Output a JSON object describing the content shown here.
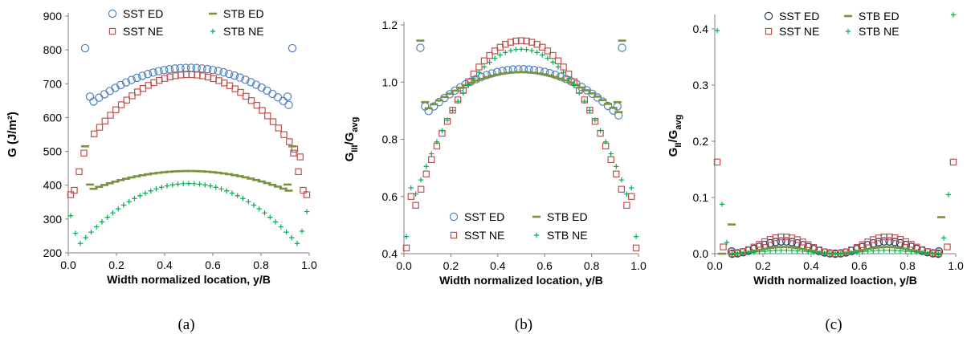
{
  "chart_data": [
    {
      "type": "scatter",
      "caption": "(a)",
      "xlabel": "Width normalized location, y/B",
      "ylabel": "G (J/m²)",
      "xlim": [
        0.0,
        1.0
      ],
      "ylim": [
        200,
        900
      ],
      "xticks": [
        "0.0",
        "0.2",
        "0.4",
        "0.6",
        "0.8",
        "1.0"
      ],
      "yticks": [
        "200",
        "300",
        "400",
        "500",
        "600",
        "700",
        "800",
        "900"
      ],
      "ytick_values": [
        200,
        300,
        400,
        500,
        600,
        700,
        800,
        900
      ],
      "legend_position": "top",
      "series": [
        {
          "name": "SST ED",
          "marker": "circle",
          "color": "#4f81bd",
          "model": "sst_ed",
          "params": {
            "edge": 805,
            "edge2": 662,
            "min": 645,
            "max": 747
          }
        },
        {
          "name": "SST NE",
          "marker": "square",
          "color": "#c0504d",
          "model": "sst_ne",
          "params": {
            "e0": 372,
            "e1": 385,
            "e2": 440,
            "e3": 495,
            "min": 545,
            "max": 727
          }
        },
        {
          "name": "STB ED",
          "marker": "dash",
          "color": "#77933c",
          "model": "stb_ed",
          "params": {
            "edge": 515,
            "edge2": 402,
            "min": 388,
            "max": 442
          }
        },
        {
          "name": "STB NE",
          "marker": "plus",
          "color": "#00b050",
          "model": "stb_ne",
          "params": {
            "e0": 310,
            "e1": 258,
            "min": 265,
            "max": 405
          }
        }
      ]
    },
    {
      "type": "scatter",
      "caption": "(b)",
      "xlabel": "Width normalized location, y/B",
      "ylabel": "GIII/Gavg",
      "ylabel_main": "G",
      "ylabel_sub": "III",
      "ylabel_sub2": "avg",
      "xlim": [
        0.0,
        1.0
      ],
      "ylim": [
        0.4,
        1.2
      ],
      "xticks": [
        "0.0",
        "0.2",
        "0.4",
        "0.6",
        "0.8",
        "1.0"
      ],
      "yticks": [
        "0.4",
        "0.6",
        "0.8",
        "1.0",
        "1.2"
      ],
      "ytick_values": [
        0.4,
        0.6,
        0.8,
        1.0,
        1.2
      ],
      "legend_position": "bottom",
      "series": [
        {
          "name": "SST ED",
          "marker": "circle",
          "color": "#4f81bd",
          "model": "b_ed",
          "params": {
            "edge": 1.12,
            "edge2": 0.915,
            "min": 0.895,
            "max": 1.045
          }
        },
        {
          "name": "SST NE",
          "marker": "square",
          "color": "#c0504d",
          "model": "b_ne",
          "params": {
            "e0": 0.42,
            "e1": 0.6,
            "min": 0.69,
            "max": 1.145
          }
        },
        {
          "name": "STB ED",
          "marker": "dash",
          "color": "#77933c",
          "model": "b_ed",
          "params": {
            "edge": 1.145,
            "edge2": 0.93,
            "min": 0.905,
            "max": 1.035
          }
        },
        {
          "name": "STB NE",
          "marker": "plus",
          "color": "#00b050",
          "model": "b_ne",
          "params": {
            "e0": 0.46,
            "e1": 0.63,
            "min": 0.715,
            "max": 1.115
          }
        }
      ]
    },
    {
      "type": "scatter",
      "caption": "(c)",
      "xlabel": "Width normalized loaction, y/B",
      "ylabel": "GII/Gavg",
      "ylabel_main": "G",
      "ylabel_sub": "II",
      "ylabel_sub2": "avg",
      "xlim": [
        0.0,
        1.0
      ],
      "ylim": [
        0.0,
        0.42
      ],
      "xticks": [
        "0.0",
        "0.2",
        "0.4",
        "0.6",
        "0.8",
        "1.0"
      ],
      "yticks": [
        "0.0",
        "0.1",
        "0.2",
        "0.3",
        "0.4"
      ],
      "ytick_values": [
        0.0,
        0.1,
        0.2,
        0.3,
        0.4
      ],
      "legend_position": "top",
      "series": [
        {
          "name": "SST ED",
          "marker": "circle",
          "color": "#1f3864",
          "model": "c_ed",
          "params": {
            "edge": 0.004,
            "peak": 0.022
          }
        },
        {
          "name": "SST NE",
          "marker": "square",
          "color": "#c0504d",
          "model": "c_ne",
          "params": {
            "e0": 0.163,
            "e1": 0.012,
            "peak": 0.03
          }
        },
        {
          "name": "STB ED",
          "marker": "dash",
          "color": "#77933c",
          "model": "c_stbed",
          "params": {
            "edge": 0.065,
            "edge2": 0.052,
            "peak": 0.012
          }
        },
        {
          "name": "STB NE",
          "marker": "plus",
          "color": "#00b050",
          "model": "c_stbne",
          "params": {
            "e0": 0.397,
            "e1": 0.088,
            "e2": 0.02,
            "peak": 0.006,
            "right0": 0.425,
            "right1": 0.105
          }
        }
      ]
    }
  ]
}
